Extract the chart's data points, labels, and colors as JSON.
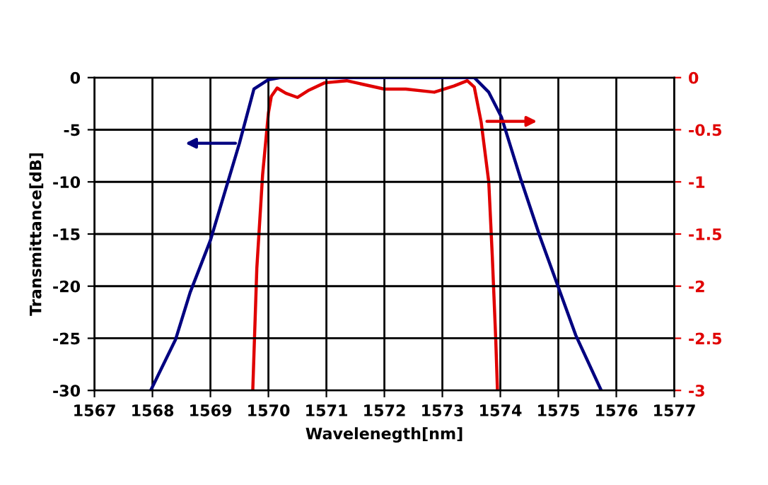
{
  "chart_data": {
    "type": "line",
    "xlabel": "Wavelenegth[nm]",
    "ylabel": "Transmittance[dB]",
    "xlim": [
      1567,
      1577
    ],
    "xticks": [
      1567,
      1568,
      1569,
      1570,
      1571,
      1572,
      1573,
      1574,
      1575,
      1576,
      1577
    ],
    "ylim": [
      -30,
      0
    ],
    "yticks": [
      -30,
      -25,
      -20,
      -15,
      -10,
      -5,
      0
    ],
    "y2lim": [
      -3,
      0
    ],
    "y2ticks": [
      -3,
      -2.5,
      -2,
      -1.5,
      -1,
      -0.5,
      0
    ],
    "grid": true,
    "legend": false,
    "marker": "none",
    "line_style": "solid",
    "series": [
      {
        "color": "#000080",
        "x": [
          1567.97,
          1568.4,
          1568.65,
          1569.0,
          1569.5,
          1569.75,
          1570.0,
          1570.2,
          1571.0,
          1572.0,
          1573.0,
          1573.55,
          1573.8,
          1574.02,
          1574.35,
          1574.68,
          1575.0,
          1575.3,
          1575.74
        ],
        "values": [
          -30,
          -25.1,
          -20.6,
          -15.6,
          -6.3,
          -1.1,
          -0.2,
          0,
          0,
          0,
          0,
          0,
          -1.4,
          -3.8,
          -9.7,
          -15.2,
          -20.1,
          -24.7,
          -30
        ]
      },
      {
        "color": "#e00000",
        "axis": "y2",
        "x": [
          1569.73,
          1569.8,
          1569.9,
          1570.0,
          1570.05,
          1570.15,
          1570.3,
          1570.5,
          1570.7,
          1570.97,
          1571.35,
          1572.0,
          1572.37,
          1572.86,
          1573.2,
          1573.43,
          1573.55,
          1573.67,
          1573.8,
          1573.86,
          1573.92,
          1573.95
        ],
        "values": [
          -3,
          -1.83,
          -0.93,
          -0.34,
          -0.18,
          -0.1,
          -0.15,
          -0.19,
          -0.12,
          -0.05,
          -0.03,
          -0.11,
          -0.11,
          -0.14,
          -0.08,
          -0.03,
          -0.09,
          -0.43,
          -1.0,
          -1.7,
          -2.5,
          -3
        ]
      }
    ]
  }
}
